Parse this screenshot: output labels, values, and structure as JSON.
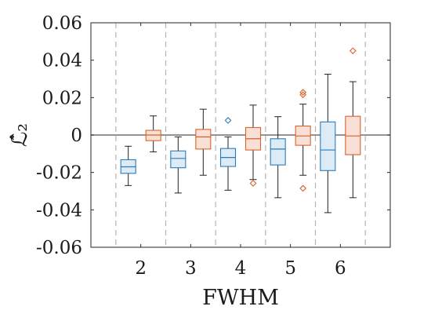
{
  "chart_data": {
    "type": "box",
    "xlabel": "FWHM",
    "ylabel": "ℒ̂₂",
    "ylim": [
      -0.06,
      0.06
    ],
    "yticks": [
      -0.06,
      -0.04,
      -0.02,
      0,
      0.02,
      0.04,
      0.06
    ],
    "ytick_labels": [
      "-0.06",
      "-0.04",
      "-0.02",
      "0",
      "0.02",
      "0.04",
      "0.06"
    ],
    "categories": [
      "2",
      "3",
      "4",
      "5",
      "6"
    ],
    "reference_line": 0,
    "grid": false,
    "series": [
      {
        "color": "#2b7bba",
        "fill": "#dcebf5",
        "boxes": [
          {
            "category": "2",
            "whisker_low": -0.027,
            "q1": -0.0205,
            "median": -0.017,
            "q3": -0.0132,
            "whisker_high": -0.006,
            "outliers": []
          },
          {
            "category": "3",
            "whisker_low": -0.031,
            "q1": -0.0175,
            "median": -0.0125,
            "q3": -0.0085,
            "whisker_high": -0.001,
            "outliers": []
          },
          {
            "category": "4",
            "whisker_low": -0.0295,
            "q1": -0.0168,
            "median": -0.012,
            "q3": -0.0072,
            "whisker_high": -0.001,
            "outliers": [
              0.0078
            ]
          },
          {
            "category": "5",
            "whisker_low": -0.0335,
            "q1": -0.016,
            "median": -0.0075,
            "q3": -0.002,
            "whisker_high": 0.0098,
            "outliers": []
          },
          {
            "category": "6",
            "whisker_low": -0.0415,
            "q1": -0.019,
            "median": -0.008,
            "q3": 0.007,
            "whisker_high": 0.0325,
            "outliers": []
          }
        ]
      },
      {
        "color": "#d9622b",
        "fill": "#f9e0d6",
        "boxes": [
          {
            "category": "2",
            "whisker_low": -0.009,
            "q1": -0.003,
            "median": 0.0,
            "q3": 0.0025,
            "whisker_high": 0.0102,
            "outliers": []
          },
          {
            "category": "3",
            "whisker_low": -0.0215,
            "q1": -0.0075,
            "median": -0.001,
            "q3": 0.003,
            "whisker_high": 0.0138,
            "outliers": []
          },
          {
            "category": "4",
            "whisker_low": -0.0238,
            "q1": -0.008,
            "median": -0.002,
            "q3": 0.004,
            "whisker_high": 0.016,
            "outliers": [
              -0.0258
            ]
          },
          {
            "category": "5",
            "whisker_low": -0.0215,
            "q1": -0.0055,
            "median": -0.0005,
            "q3": 0.0048,
            "whisker_high": 0.0165,
            "outliers": [
              -0.0285,
              0.0215,
              0.0228
            ]
          },
          {
            "category": "6",
            "whisker_low": -0.0335,
            "q1": -0.0105,
            "median": -0.0005,
            "q3": 0.01,
            "whisker_high": 0.0285,
            "outliers": [
              0.045
            ]
          }
        ]
      }
    ]
  }
}
